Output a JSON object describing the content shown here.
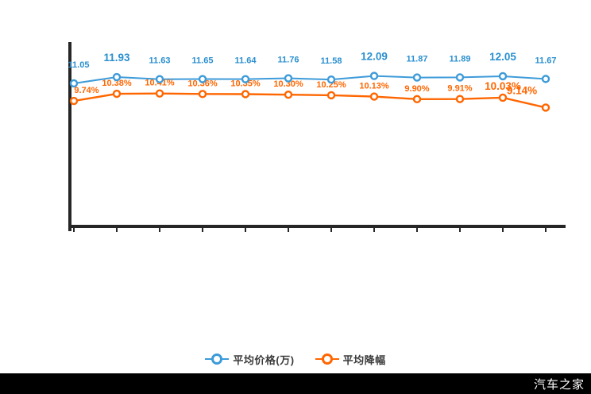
{
  "watermark": "汽车之家",
  "legend": {
    "items": [
      {
        "label": "平均价格(万)",
        "color": "#3d9bd9"
      },
      {
        "label": "平均降幅",
        "color": "#ff6600"
      }
    ]
  },
  "chart_data": {
    "type": "line",
    "title": "",
    "xlabel": "",
    "ylabel": "",
    "grid": false,
    "legend_position": "bottom",
    "axes": {
      "x_axis_visible": true,
      "y_axis_visible": true,
      "tick_labels_visible": false,
      "num_ticks": 12
    },
    "series": [
      {
        "name": "平均价格(万)",
        "unit": "",
        "color": "#3d9bd9",
        "label_color": "#2a8fd0",
        "values": [
          11.05,
          11.93,
          11.63,
          11.65,
          11.64,
          11.76,
          11.58,
          12.09,
          11.87,
          11.89,
          12.05,
          11.67
        ],
        "emphasis": [
          1,
          7,
          10
        ]
      },
      {
        "name": "平均降幅",
        "unit": "%",
        "color": "#ff6600",
        "label_color": "#ff6600",
        "values": [
          9.74,
          10.38,
          10.41,
          10.36,
          10.35,
          10.3,
          10.25,
          10.13,
          9.9,
          9.91,
          10.03,
          9.14
        ],
        "emphasis": [
          10,
          11
        ]
      }
    ]
  }
}
